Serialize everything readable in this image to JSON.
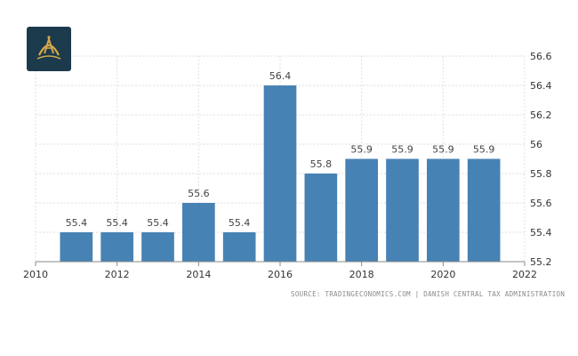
{
  "brand": {
    "bg": "#1b3a4b",
    "gold": "#d4a84a"
  },
  "source_text": "SOURCE: TRADINGECONOMICS.COM | DANISH CENTRAL TAX ADMINISTRATION",
  "chart_data": {
    "type": "bar",
    "x": [
      2011,
      2012,
      2013,
      2014,
      2015,
      2016,
      2017,
      2018,
      2019,
      2020,
      2021
    ],
    "values": [
      55.4,
      55.4,
      55.4,
      55.6,
      55.4,
      56.4,
      55.8,
      55.9,
      55.9,
      55.9,
      55.9
    ],
    "data_labels": [
      "55.4",
      "55.4",
      "55.4",
      "55.6",
      "55.4",
      "56.4",
      "55.8",
      "55.9",
      "55.9",
      "55.9",
      "55.9"
    ],
    "xlim": [
      2010,
      2022
    ],
    "ylim": [
      55.2,
      56.6
    ],
    "xticks": [
      2010,
      2012,
      2014,
      2016,
      2018,
      2020,
      2022
    ],
    "xtick_labels": [
      "2010",
      "2012",
      "2014",
      "2016",
      "2018",
      "2020",
      "2022"
    ],
    "yticks": [
      55.2,
      55.4,
      55.6,
      55.8,
      56,
      56.2,
      56.4,
      56.6
    ],
    "ytick_labels": [
      "55.2",
      "55.4",
      "55.6",
      "55.8",
      "56",
      "56.2",
      "56.4",
      "56.6"
    ],
    "yaxis_side": "right",
    "grid": true,
    "bar_color": "#4682b4",
    "title": "",
    "xlabel": "",
    "ylabel": ""
  }
}
